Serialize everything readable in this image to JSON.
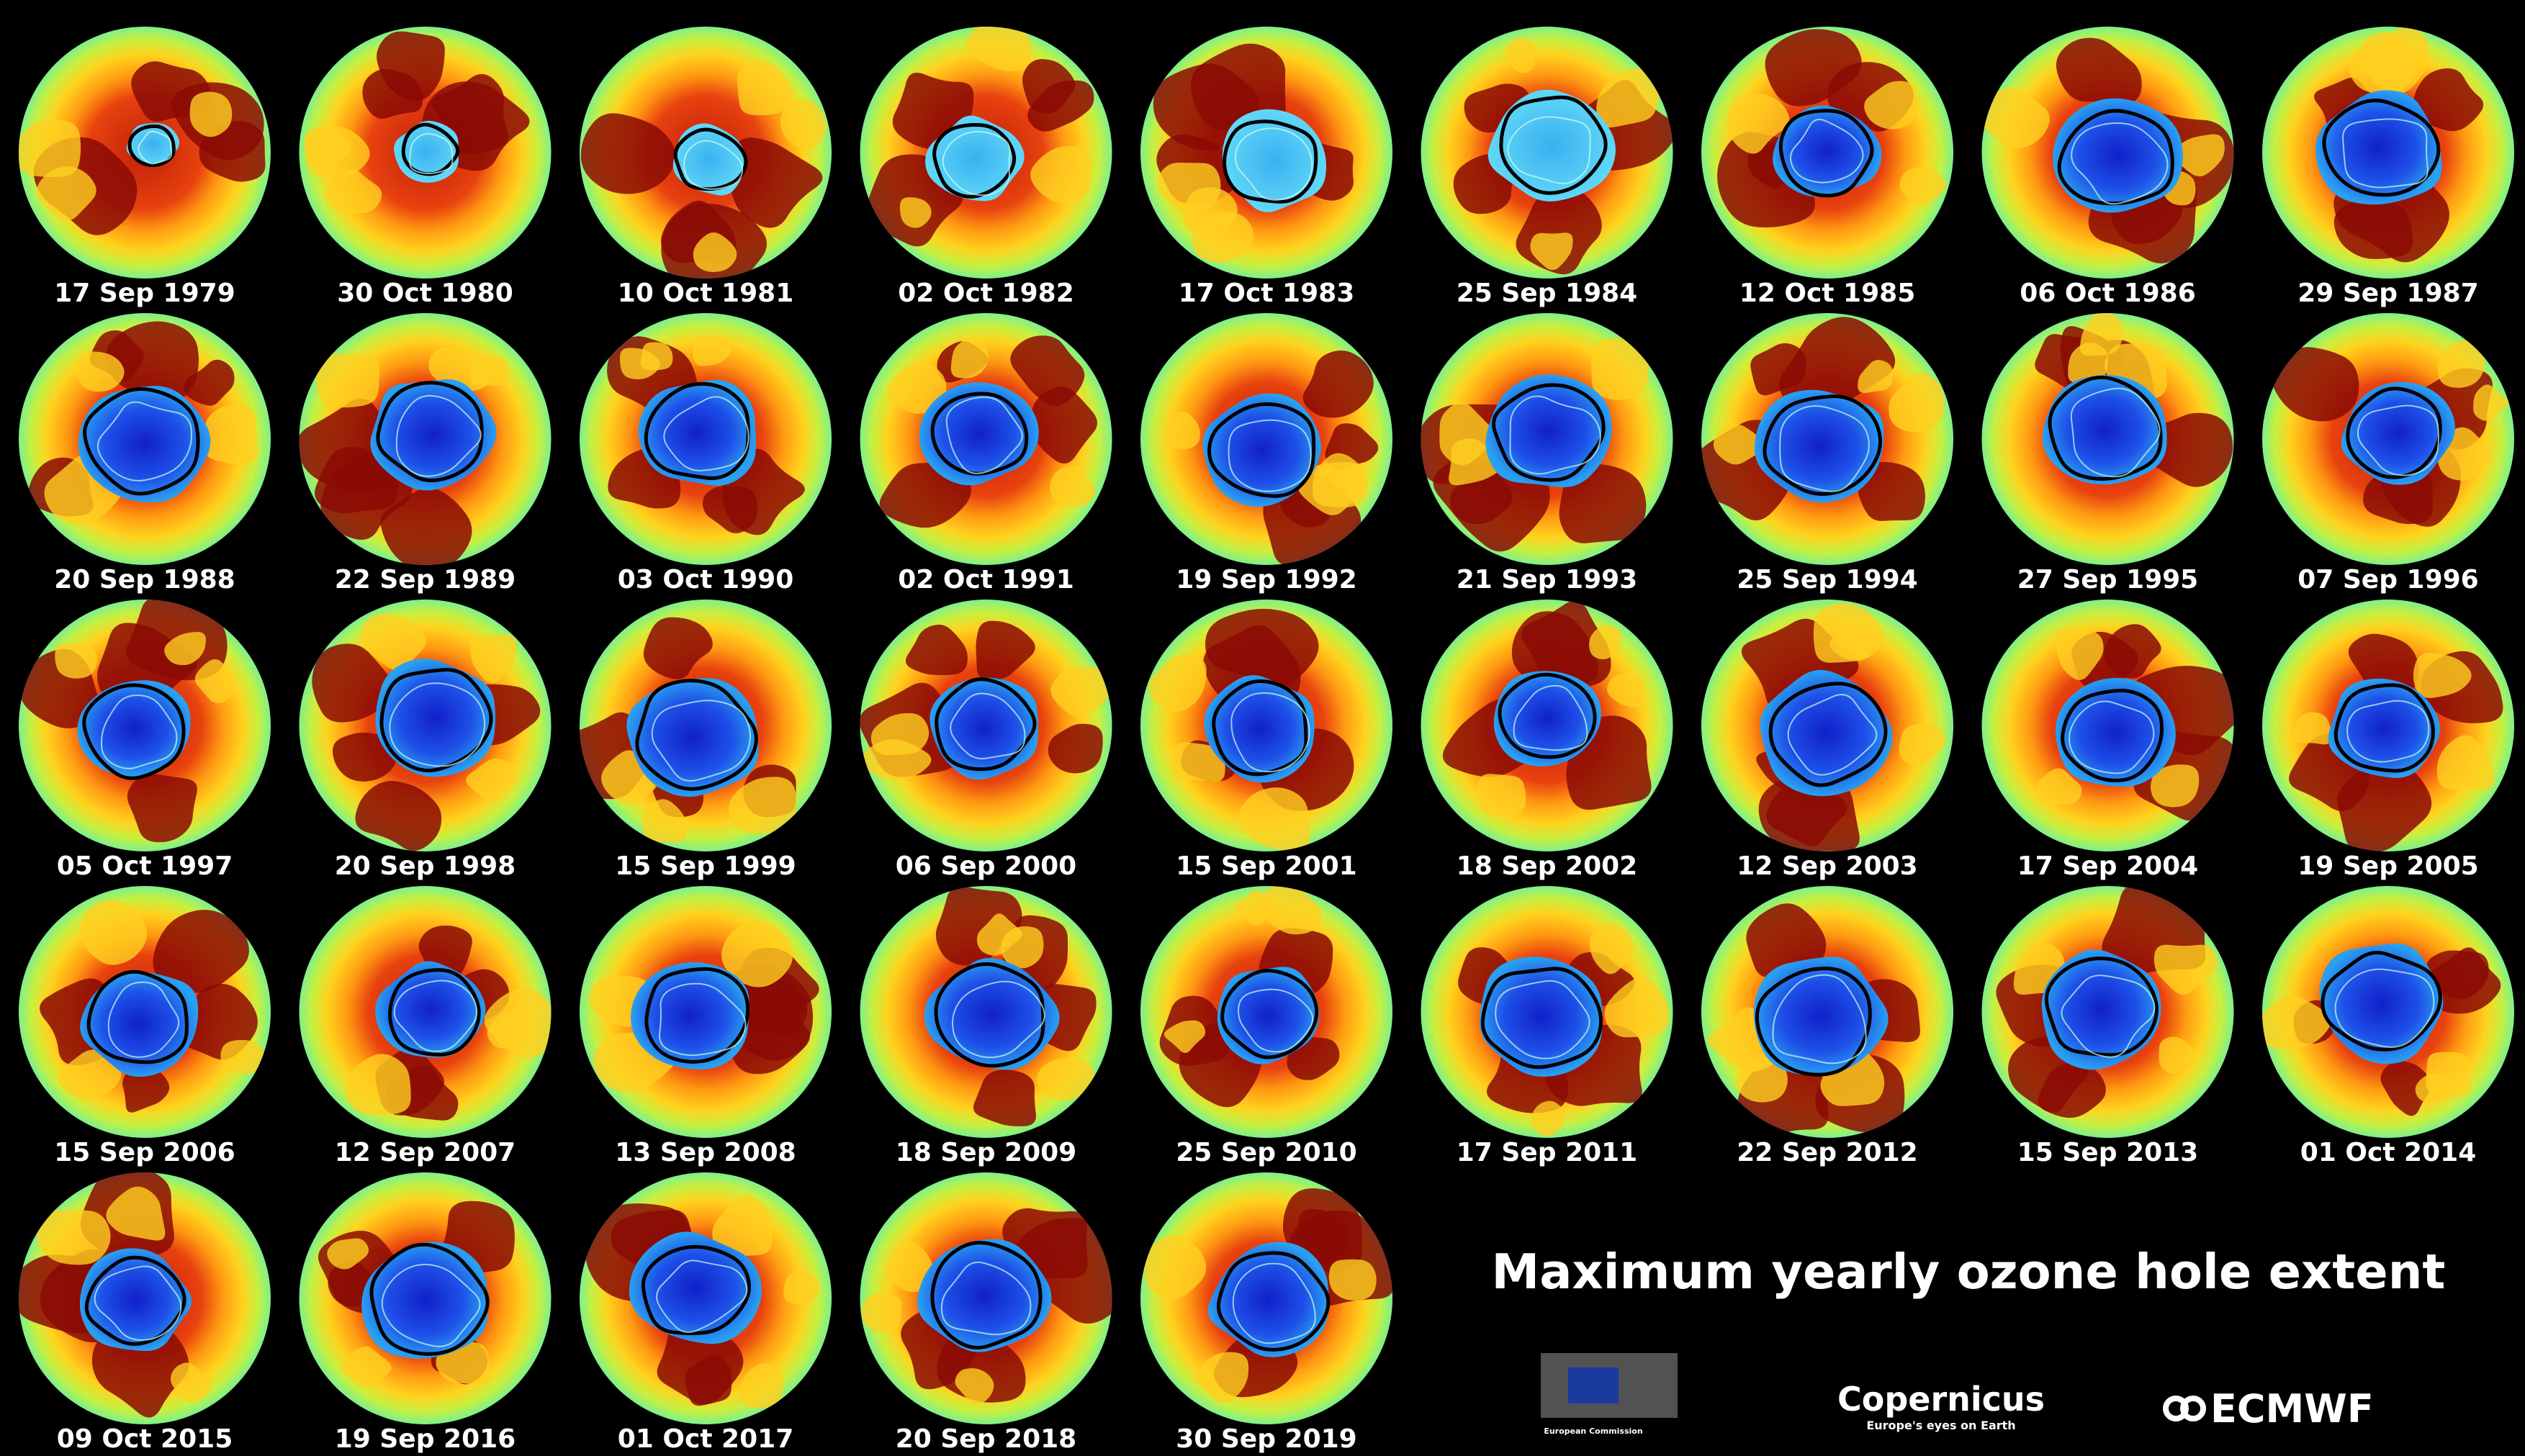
{
  "title": "Maximum yearly ozone hole extent",
  "panels": [
    "17 Sep 1979",
    "30 Oct 1980",
    "10 Oct 1981",
    "02 Oct 1982",
    "17 Oct 1983",
    "25 Sep 1984",
    "12 Oct 1985",
    "06 Oct 1986",
    "29 Sep 1987",
    "20 Sep 1988",
    "22 Sep 1989",
    "03 Oct 1990",
    "02 Oct 1991",
    "19 Sep 1992",
    "21 Sep 1993",
    "25 Sep 1994",
    "27 Sep 1995",
    "07 Sep 1996",
    "05 Oct 1997",
    "20 Sep 1998",
    "15 Sep 1999",
    "06 Sep 2000",
    "15 Sep 2001",
    "18 Sep 2002",
    "12 Sep 2003",
    "17 Sep 2004",
    "19 Sep 2005",
    "15 Sep 2006",
    "12 Sep 2007",
    "13 Sep 2008",
    "18 Sep 2009",
    "25 Sep 2010",
    "17 Sep 2011",
    "22 Sep 2012",
    "15 Sep 2013",
    "01 Oct 2014",
    "09 Oct 2015",
    "19 Sep 2016",
    "01 Oct 2017",
    "20 Sep 2018",
    "30 Sep 2019"
  ],
  "logos": {
    "ec": "European Commission",
    "copernicus": "Copernicus",
    "copernicus_tagline": "Europe's eyes on Earth",
    "ecmwf": "ECMWF"
  }
}
